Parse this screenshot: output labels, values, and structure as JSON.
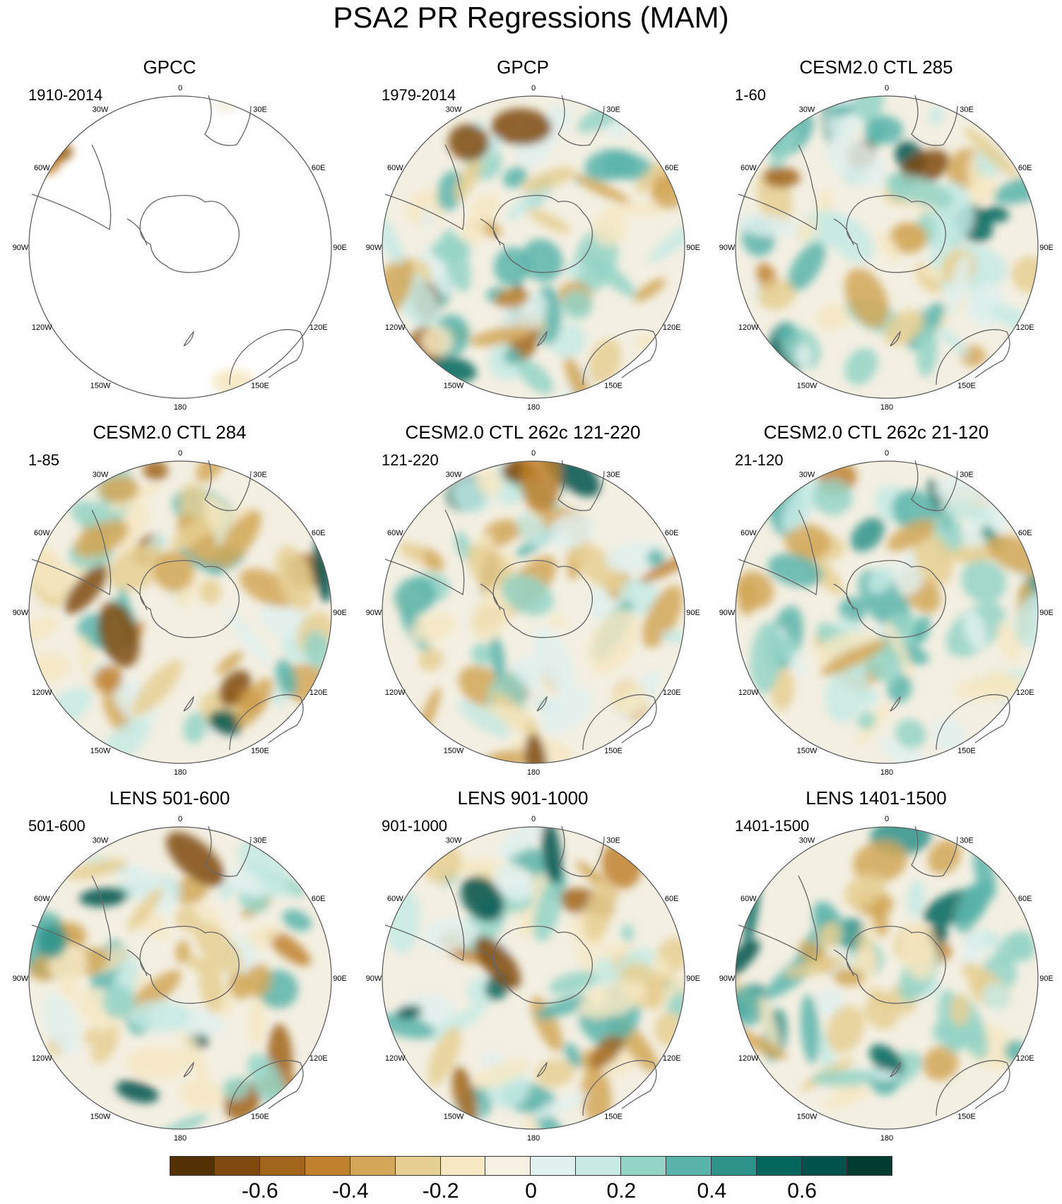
{
  "title": "PSA2 PR Regressions (MAM)",
  "lon_labels": {
    "l0": "0",
    "l30e": "30E",
    "l60e": "60E",
    "l90e": "90E",
    "l120e": "120E",
    "l150e": "150E",
    "l180": "180",
    "l150w": "150W",
    "l120w": "120W",
    "l90w": "90W",
    "l60w": "60W",
    "l30w": "30W"
  },
  "panels": [
    {
      "title": "GPCC",
      "period": "1910-2014",
      "data_coverage": "land-only"
    },
    {
      "title": "GPCP",
      "period": "1979-2014",
      "data_coverage": "global"
    },
    {
      "title": "CESM2.0 CTL 285",
      "period": "1-60",
      "data_coverage": "global"
    },
    {
      "title": "CESM2.0 CTL 284",
      "period": "1-85",
      "data_coverage": "global"
    },
    {
      "title": "CESM2.0 CTL 262c 121-220",
      "period": "121-220",
      "data_coverage": "global"
    },
    {
      "title": "CESM2.0 CTL 262c 21-120",
      "period": "21-120",
      "data_coverage": "global"
    },
    {
      "title": "LENS 501-600",
      "period": "501-600",
      "data_coverage": "global"
    },
    {
      "title": "LENS 901-1000",
      "period": "901-1000",
      "data_coverage": "global"
    },
    {
      "title": "LENS 1401-1500",
      "period": "1401-1500",
      "data_coverage": "global"
    }
  ],
  "colorbar": {
    "colors": [
      "#543005",
      "#7f4a0d",
      "#a0651a",
      "#bf812d",
      "#d2a757",
      "#e6cf93",
      "#f6e8c3",
      "#f5f0e1",
      "#e0f0ef",
      "#c7eae5",
      "#94d4c7",
      "#5ab4ac",
      "#2d938a",
      "#01665e",
      "#00534c",
      "#003c30"
    ],
    "labels": [
      "-0.6",
      "-0.4",
      "-0.2",
      "0",
      "0.2",
      "0.4",
      "0.6"
    ]
  }
}
